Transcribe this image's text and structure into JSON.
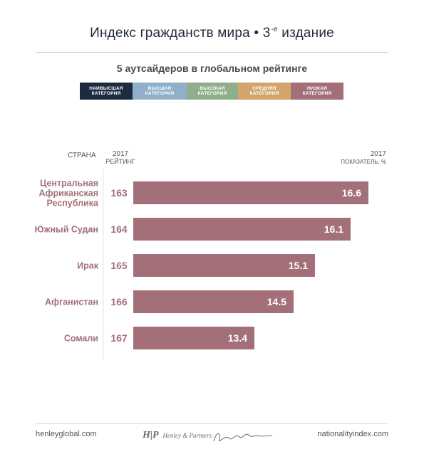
{
  "header": {
    "title_main": "Индекс гражданств мира • 3",
    "title_sup": "-е",
    "title_tail": " издание",
    "subtitle": "5 аутсайдеров в глобальном рейтинге"
  },
  "legend": [
    {
      "label": "НАИВЫСШАЯ\nКАТЕГОРИЯ",
      "color": "#1c2b3f"
    },
    {
      "label": "ВЫСШАЯ\nКАТЕГОРИЯ",
      "color": "#8fb0c8"
    },
    {
      "label": "ВЫСОКАЯ\nКАТЕГОРИЯ",
      "color": "#8fae8c"
    },
    {
      "label": "СРЕДНЯЯ\nКАТЕГОРИЯ",
      "color": "#d3a56d"
    },
    {
      "label": "НИЗКАЯ\nКАТЕГОРИЯ",
      "color": "#a3707a"
    }
  ],
  "columns": {
    "country": "СТРАНА",
    "rank_year": "2017",
    "rank_label": "РЕЙТИНГ",
    "score_year": "2017",
    "score_label": "ПОКАЗАТЕЛЬ, %"
  },
  "chart_data": {
    "type": "bar",
    "orientation": "horizontal",
    "categories": [
      "Центральная\nАфриканская\nРеспублика",
      "Южный Судан",
      "Ирак",
      "Афганистан",
      "Сомали"
    ],
    "ranks": [
      "163",
      "164",
      "165",
      "166",
      "167"
    ],
    "values": [
      16.6,
      16.1,
      15.1,
      14.5,
      13.4
    ],
    "value_labels": [
      "16.6",
      "16.1",
      "15.1",
      "14.5",
      "13.4"
    ],
    "bar_color": "#a3707a",
    "label_color": "#a3707a"
  },
  "footer": {
    "left": "henleyglobal.com",
    "logo_mark": "H|P",
    "logo_text": "Henley & Partners",
    "signature": "Dimitry Kochenov",
    "right": "nationalityindex.com"
  }
}
